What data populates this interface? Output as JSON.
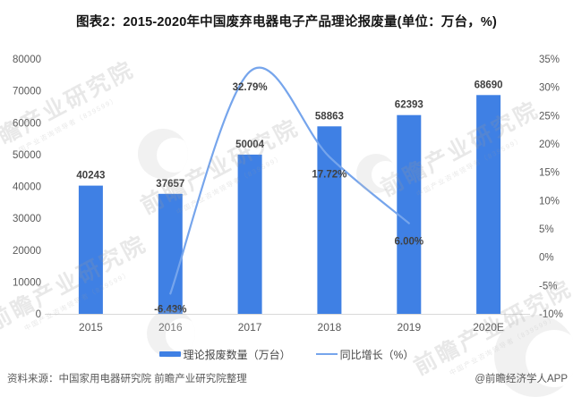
{
  "title": "图表2：2015-2020年中国废弃电器电子产品理论报废量(单位：万台，%)",
  "chart_data": {
    "type": "bar",
    "subtype": "bar+line combo",
    "categories": [
      "2015",
      "2016",
      "2017",
      "2018",
      "2019",
      "2020E"
    ],
    "series": [
      {
        "name": "理论报废数量（万台）",
        "type": "bar",
        "color": "#3F80E4",
        "axis": "left",
        "values": [
          40243,
          37657,
          50004,
          58863,
          62393,
          68690
        ],
        "value_labels": [
          "40243",
          "37657",
          "50004",
          "58863",
          "62393",
          "68690"
        ]
      },
      {
        "name": "同比增长（%）",
        "type": "line",
        "color": "#76A5EC",
        "axis": "right",
        "values": [
          null,
          -6.43,
          32.79,
          17.72,
          6.0,
          null
        ],
        "point_labels": [
          null,
          "-6.43%",
          "32.79%",
          "17.72%",
          "6.00%",
          null
        ]
      }
    ],
    "left_axis": {
      "min": 0,
      "max": 80000,
      "step": 10000,
      "ticks": [
        "0",
        "10000",
        "20000",
        "30000",
        "40000",
        "50000",
        "60000",
        "70000",
        "80000"
      ]
    },
    "right_axis": {
      "min": -10,
      "max": 35,
      "step": 5,
      "ticks": [
        "-10%",
        "-5%",
        "0%",
        "5%",
        "10%",
        "15%",
        "20%",
        "25%",
        "30%",
        "35%"
      ]
    },
    "grid": false,
    "legend_position": "bottom",
    "axis_line_color": "#d9d9d9"
  },
  "legend": {
    "items": [
      {
        "label": "理论报废数量（万台）",
        "swatch": "bar"
      },
      {
        "label": "同比增长（%）",
        "swatch": "line"
      }
    ]
  },
  "footer": {
    "source": "资料来源：中国家用电器研究院 前瞻产业研究院整理",
    "credit": "@前瞻经济学人APP"
  },
  "watermark": {
    "text": "前瞻产业研究院",
    "subtext": "中国产业咨询领导者（839599）"
  }
}
